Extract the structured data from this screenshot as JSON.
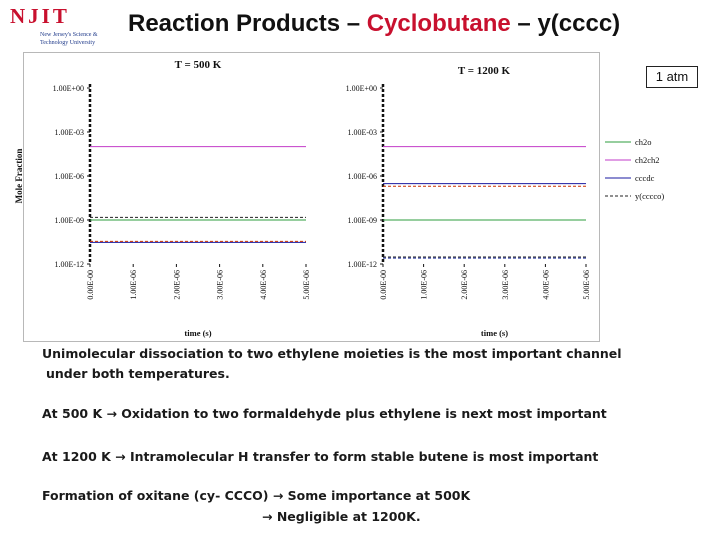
{
  "logo": {
    "main": "NJIT",
    "sub1": "New Jersey's Science &",
    "sub2": "Technology University"
  },
  "title": {
    "part1": "Reaction Products – ",
    "part2": "Cyclobutane",
    "part3": " – y(cccc)"
  },
  "atm_label": "1 atm",
  "colors": {
    "title_accent": "#c8102e",
    "ch2o": "#2e9e3e",
    "ch2ch2": "#c23bc8",
    "cccdc": "#1a1aa0",
    "ycccco": "#222222"
  },
  "chart_data": [
    {
      "type": "line",
      "title": "T = 500 K",
      "xlabel": "time (s)",
      "ylabel": "Mole Fraction",
      "log_y": true,
      "xlim": [
        0,
        5e-06
      ],
      "ylim": [
        1e-12,
        1
      ],
      "x_ticks": [
        "0.00E-00",
        "1.00E-06",
        "2.00E-06",
        "3.00E-06",
        "4.00E-06",
        "5.00E-06"
      ],
      "y_ticks": [
        "1.00E-12",
        "1.00E-09",
        "1.00E-06",
        "1.00E-03",
        "1.00E+00"
      ],
      "series": [
        {
          "name": "ch2o",
          "x": [
            0,
            5e-06
          ],
          "y": [
            1e-09,
            1e-09
          ],
          "color": "#2e9e3e",
          "dash": false
        },
        {
          "name": "ch2ch2",
          "x": [
            0,
            5e-06
          ],
          "y": [
            0.0001,
            0.0001
          ],
          "color": "#c23bc8",
          "dash": false
        },
        {
          "name": "cccdc",
          "x": [
            0,
            5e-06
          ],
          "y": [
            3e-11,
            3e-11
          ],
          "color": "#1a1aa0",
          "dash": false
        },
        {
          "name": "y(cccco)",
          "x": [
            0,
            5e-06
          ],
          "y": [
            1.5e-09,
            1.5e-09
          ],
          "color": "#222222",
          "dash": true
        },
        {
          "name": "",
          "x": [
            0,
            5e-06
          ],
          "y": [
            3.5e-11,
            3.5e-11
          ],
          "color": "#cc3300",
          "dash": true
        }
      ]
    },
    {
      "type": "line",
      "title": "T = 1200 K",
      "xlabel": "time (s)",
      "ylabel": "",
      "log_y": true,
      "xlim": [
        0,
        5e-06
      ],
      "ylim": [
        1e-12,
        1
      ],
      "x_ticks": [
        "0.00E-00",
        "1.00E-06",
        "2.00E-06",
        "3.00E-06",
        "4.00E-06",
        "5.00E-06"
      ],
      "y_ticks": [
        "1.00E-12",
        "1.00E-09",
        "1.00E-06",
        "1.00E-03",
        "1.00E+00"
      ],
      "series": [
        {
          "name": "ch2o",
          "x": [
            0,
            5e-06
          ],
          "y": [
            1e-09,
            1e-09
          ],
          "color": "#2e9e3e",
          "dash": false
        },
        {
          "name": "ch2ch2",
          "x": [
            0,
            5e-06
          ],
          "y": [
            0.0001,
            0.0001
          ],
          "color": "#c23bc8",
          "dash": false
        },
        {
          "name": "cccdc",
          "x": [
            0,
            5e-06
          ],
          "y": [
            3e-07,
            3e-07
          ],
          "color": "#1a1aa0",
          "dash": false
        },
        {
          "name": "y(cccco)",
          "x": [
            0,
            5e-06
          ],
          "y": [
            3e-12,
            3e-12
          ],
          "color": "#222222",
          "dash": true
        },
        {
          "name": "",
          "x": [
            0,
            5e-06
          ],
          "y": [
            2e-07,
            2e-07
          ],
          "color": "#cc3300",
          "dash": true
        },
        {
          "name": "",
          "x": [
            0,
            5e-06
          ],
          "y": [
            2.5e-12,
            2.5e-12
          ],
          "color": "#2a3aa8",
          "dash": true
        }
      ]
    }
  ],
  "legend": [
    {
      "label": "ch2o",
      "color": "#2e9e3e",
      "dash": false
    },
    {
      "label": "ch2ch2",
      "color": "#c23bc8",
      "dash": false
    },
    {
      "label": "cccdc",
      "color": "#1a1aa0",
      "dash": false
    },
    {
      "label": "y(cccco)",
      "color": "#222222",
      "dash": true
    }
  ],
  "bullets": {
    "line1a": "Unimolecular dissociation to two ethylene moieties is the most important channel",
    "line1b": "under both temperatures.",
    "line2": "At 500 K → Oxidation to two formaldehyde plus ethylene is next most important",
    "line3": "At 1200 K → Intramolecular H transfer to form stable butene is most important",
    "line4a": "Formation of oxitane (cy- CCCO) → Some importance at 500K",
    "line4b": "→ Negligible at 1200K."
  }
}
